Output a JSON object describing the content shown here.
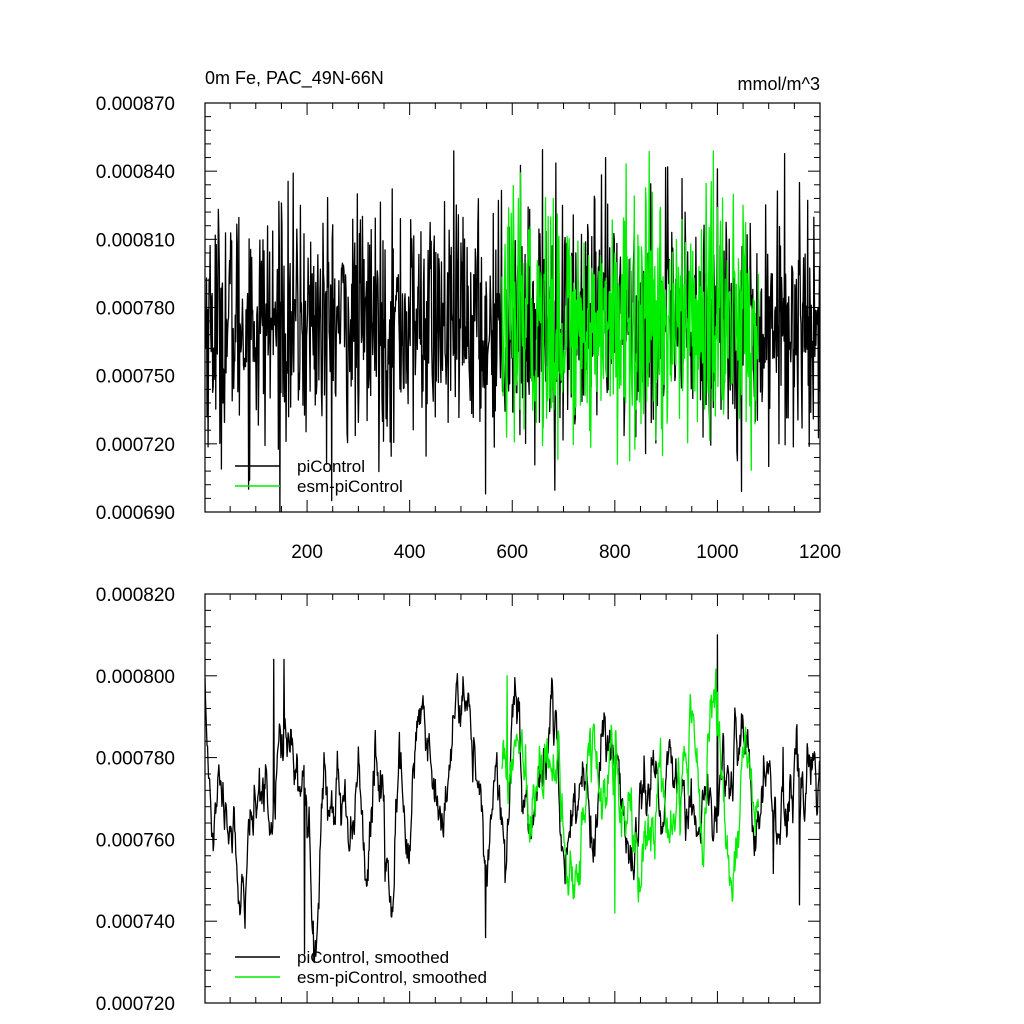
{
  "chart_data": [
    {
      "type": "line",
      "title_left": "0m Fe, PAC_49N-66N",
      "title_right": "mmol/m^3",
      "xlabel": "",
      "ylabel": "",
      "xlim": [
        1,
        1200
      ],
      "ylim": [
        0.00069,
        0.00087
      ],
      "x_ticks": [
        200,
        400,
        600,
        800,
        1000,
        1200
      ],
      "x_tick_labels": [
        "200",
        "400",
        "600",
        "800",
        "1000",
        "1200"
      ],
      "y_ticks": [
        0.00069,
        0.00072,
        0.00075,
        0.00078,
        0.00081,
        0.00084,
        0.00087
      ],
      "y_tick_labels": [
        "0.000690",
        "0.000720",
        "0.000750",
        "0.000780",
        "0.000810",
        "0.000840",
        "0.000870"
      ],
      "legend_position": "bottom-left",
      "series": [
        {
          "name": "piControl",
          "color": "#000000",
          "x_range": [
            1,
            1200
          ],
          "mean": 0.000773,
          "spread": 2.55e-05,
          "features": [
            [
              150,
              0.000826
            ],
            [
              238,
              0.000711
            ],
            [
              548,
              0.000698
            ],
            [
              782,
              0.000846
            ],
            [
              1000,
              0.000841
            ],
            [
              1160,
              0.000835
            ]
          ],
          "values": []
        },
        {
          "name": "esm-piControl",
          "color": "#00ee00",
          "x_range": [
            580,
            1080
          ],
          "mean": 0.000773,
          "spread": 2.6e-05,
          "features": [
            [
              680,
              0.000712
            ],
            [
              805,
              0.000711
            ],
            [
              680,
              0.000828
            ],
            [
              1000,
              0.000824
            ]
          ],
          "values": []
        }
      ]
    },
    {
      "type": "line",
      "title_left": "",
      "title_right": "",
      "xlabel": "",
      "ylabel": "",
      "xlim": [
        1,
        1200
      ],
      "ylim": [
        0.00072,
        0.00082
      ],
      "x_ticks": [
        200,
        400,
        600,
        800,
        1000,
        1200
      ],
      "x_tick_labels": [],
      "y_ticks": [
        0.00072,
        0.00074,
        0.00076,
        0.00078,
        0.0008,
        0.00082
      ],
      "y_tick_labels": [
        "0.000720",
        "0.000740",
        "0.000760",
        "0.000780",
        "0.000800",
        "0.000820"
      ],
      "legend_position": "bottom-left",
      "series": [
        {
          "name": "piControl, smoothed",
          "color": "#000000",
          "x_range": [
            1,
            1200
          ],
          "mean": 0.000771,
          "spread": 1.15e-05,
          "features": [
            [
              135,
              0.000804
            ],
            [
              155,
              0.000804
            ],
            [
              195,
              0.000732
            ],
            [
              548,
              0.000736
            ],
            [
              1000,
              0.00081
            ],
            [
              1160,
              0.000744
            ]
          ],
          "values": []
        },
        {
          "name": "esm-piControl, smoothed",
          "color": "#00ee00",
          "x_range": [
            580,
            1080
          ],
          "mean": 0.000771,
          "spread": 1.15e-05,
          "features": [
            [
              590,
              0.0008
            ],
            [
              800,
              0.000742
            ],
            [
              1000,
              0.000796
            ]
          ],
          "values": []
        }
      ]
    }
  ]
}
